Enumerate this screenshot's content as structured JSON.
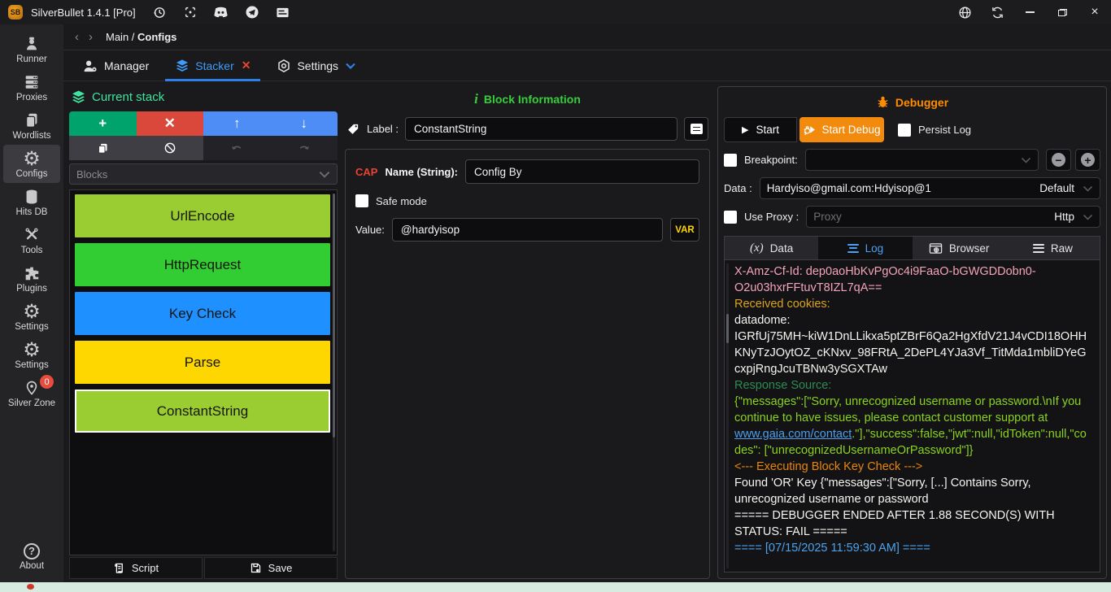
{
  "titlebar": {
    "app_title": "SilverBullet 1.4.1 [Pro]",
    "logo_text": "SB"
  },
  "breadcrumb": {
    "path_prefix": "Main / ",
    "path_current": "Configs"
  },
  "tabs": [
    {
      "label": "Manager",
      "active": false
    },
    {
      "label": "Stacker",
      "active": true,
      "closable": true
    },
    {
      "label": "Settings",
      "active": false,
      "dropdown": true
    }
  ],
  "sidebar": {
    "items": [
      {
        "label": "Runner",
        "icon": "runner-icon"
      },
      {
        "label": "Proxies",
        "icon": "proxies-icon"
      },
      {
        "label": "Wordlists",
        "icon": "wordlists-icon"
      },
      {
        "label": "Configs",
        "icon": "configs-gear-icon",
        "active": true
      },
      {
        "label": "Hits DB",
        "icon": "database-icon"
      },
      {
        "label": "Tools",
        "icon": "tools-icon"
      },
      {
        "label": "Plugins",
        "icon": "plugin-icon"
      },
      {
        "label": "Settings",
        "icon": "sb-gear-icon"
      },
      {
        "label": "Settings",
        "icon": "core-gear-icon"
      },
      {
        "label": "Silver Zone",
        "icon": "location-pin-icon",
        "badge": "0"
      }
    ],
    "about": {
      "label": "About",
      "icon": "question-icon"
    }
  },
  "stack_panel": {
    "title": "Current stack",
    "blocks_dropdown_placeholder": "Blocks",
    "toolbar_glyphs": {
      "add": "+",
      "delete": "✕",
      "up": "↑",
      "down": "↓"
    },
    "blocks": [
      {
        "label": "UrlEncode",
        "color": "#9ACD32",
        "selected": false
      },
      {
        "label": "HttpRequest",
        "color": "#32CD32",
        "selected": false
      },
      {
        "label": "Key Check",
        "color": "#1E90FF",
        "selected": false
      },
      {
        "label": "Parse",
        "color": "#FFD700",
        "selected": false
      },
      {
        "label": "ConstantString",
        "color": "#9ACD32",
        "selected": true
      }
    ],
    "script_button": "Script",
    "save_button": "Save"
  },
  "block_info": {
    "title": "Block Information",
    "label_caption": "Label :",
    "label_value": "ConstantString",
    "cap_tag": "CAP",
    "name_caption": "Name (String):",
    "name_value": "Config By",
    "safe_mode_label": "Safe mode",
    "value_caption": "Value:",
    "value_value": "@hardyisop",
    "var_button": "VAR"
  },
  "debugger": {
    "title": "Debugger",
    "start_button": "Start",
    "start_debug_button": "Start Debug",
    "persist_log_label": "Persist Log",
    "breakpoint_label": "Breakpoint:",
    "data_label": "Data :",
    "data_value": "Hardyiso@gmail.com:Hdyisop@1",
    "data_type_selected": "Default",
    "use_proxy_label": "Use Proxy :",
    "proxy_placeholder": "Proxy",
    "proxy_type_selected": "Http",
    "tabs": [
      {
        "label": "Data",
        "icon": "variable-icon",
        "active": false
      },
      {
        "label": "Log",
        "icon": "log-lines-icon",
        "active": true
      },
      {
        "label": "Browser",
        "icon": "browser-icon",
        "active": false
      },
      {
        "label": "Raw",
        "icon": "raw-lines-icon",
        "active": false
      }
    ],
    "log_lines": [
      {
        "color": "#f2a4b8",
        "segments": [
          {
            "text": "X-Amz-Cf-Id: dep0aoHbKvPgOc4i9FaaO-bGWGDDobn0-O2u03hxrFFtuvT8IZL7qA=="
          }
        ]
      },
      {
        "color": "#d9a321",
        "segments": [
          {
            "text": "Received cookies:"
          }
        ]
      },
      {
        "color": "#f5f5f0",
        "segments": [
          {
            "text": "datadome:"
          }
        ]
      },
      {
        "color": "#f5f5f0",
        "segments": [
          {
            "text": "IGRfUj75MH~kiW1DnLLikxa5ptZBrF6Qa2HgXfdV21J4vCDI18OHHKNyTzJOytOZ_cKNxv_98FRtA_2DePL4YJa3Vf_TitMda1mbliDYeGcxpjRngJcuTBNw3ySGXTAw"
          }
        ]
      },
      {
        "color": "#2f8b4f",
        "segments": [
          {
            "text": "Response Source:"
          }
        ]
      },
      {
        "color": "#8ad21f",
        "segments": [
          {
            "text": "{\"messages\":[\"Sorry, unrecognized username or password.\\nIf you continue to have issues, please contact customer support at "
          },
          {
            "text": "www.gaia.com/contact",
            "link": true
          },
          {
            "text": ".\"],\"success\":false,\"jwt\":null,\"idToken\":null,\"codes\": [\"unrecognizedUsernameOrPassword\"]}"
          }
        ]
      },
      {
        "color": "#e8850c",
        "segments": [
          {
            "text": "<--- Executing Block Key Check --->"
          }
        ]
      },
      {
        "color": "#f5f5f0",
        "segments": [
          {
            "text": "Found 'OR' Key {\"messages\":[\"Sorry, [...] Contains Sorry, unrecognized username or password"
          }
        ]
      },
      {
        "color": "#f5f5f0",
        "segments": [
          {
            "text": "===== DEBUGGER ENDED AFTER 1.88 SECOND(S) WITH STATUS: FAIL ====="
          }
        ]
      },
      {
        "color": "#4ea2ea",
        "segments": [
          {
            "text": "==== [07/15/2025 11:59:30 AM] ===="
          }
        ]
      }
    ]
  },
  "colors": {
    "accent_green": "#00a36c",
    "accent_red": "#d9483b",
    "accent_blue": "#4e8df5",
    "stack_title_green": "#41e3a0",
    "info_title_green": "#38cd3c",
    "debugger_orange": "#ff8c00",
    "start_debug_orange": "#f28a0e",
    "tab_active_blue": "#3f9bfa",
    "var_yellow": "#ffd700",
    "status_bar_mint": "#d8ebe0"
  }
}
